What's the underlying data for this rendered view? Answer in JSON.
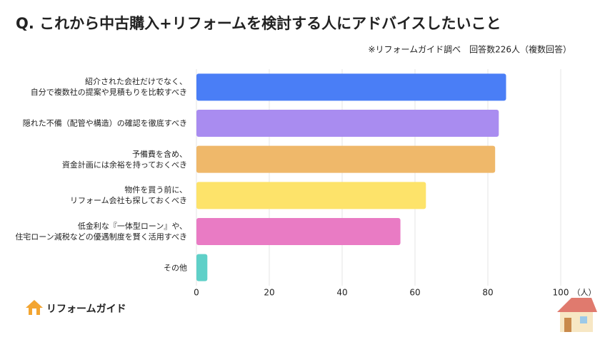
{
  "chart_data": {
    "type": "barh",
    "title": "Q. これから中古購入+リフォームを検討する人にアドバイスしたいこと",
    "subtitle": "※リフォームガイド調べ　回答数226人（複数回答）",
    "x_unit": "（人）",
    "logo": "リフォームガイド",
    "categories": [
      "紹介された会社だけでなく、\n自分で複数社の提案や見積もりを比較すべき",
      "隠れた不備（配管や構造）の確認を徹底すべき",
      "予備費を含め、\n資金計画には余裕を持っておくべき",
      "物件を買う前に、\nリフォーム会社も探しておくべき",
      "低金利な『一体型ローン』や、\n住宅ローン減税などの優遇制度を賢く活用すべき",
      "その他"
    ],
    "values": [
      85,
      83,
      82,
      63,
      56,
      3
    ],
    "colors": [
      "#4a7ef6",
      "#a98cf0",
      "#efb86a",
      "#fde36a",
      "#e97bc4",
      "#5fd0c8"
    ],
    "xlim": [
      0,
      100
    ],
    "xticks": [
      0,
      20,
      40,
      60,
      80,
      100
    ],
    "grid": true
  }
}
